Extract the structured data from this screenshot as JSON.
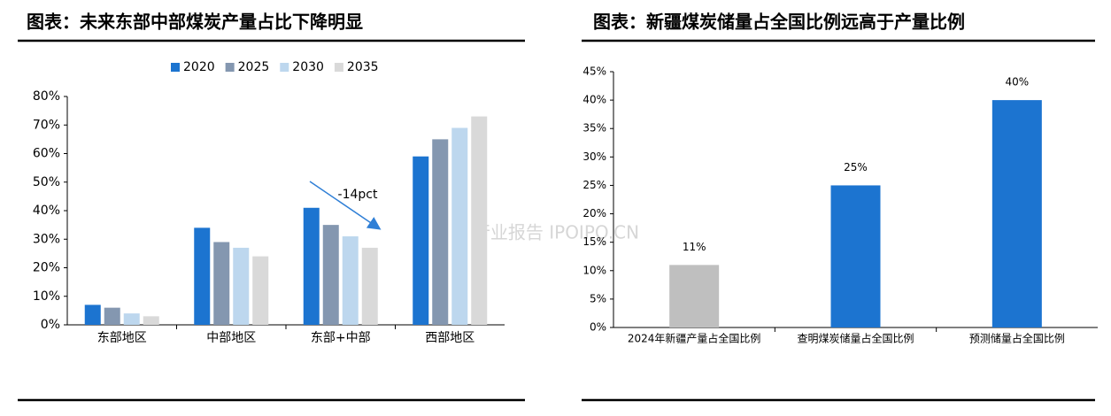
{
  "chart_data": [
    {
      "type": "bar",
      "title": "图表：未来东部中部煤炭产量占比下降明显",
      "categories": [
        "东部地区",
        "中部地区",
        "东部+中部",
        "西部地区"
      ],
      "series": [
        {
          "name": "2020",
          "color": "#1c74d0",
          "values": [
            7,
            34,
            41,
            59
          ]
        },
        {
          "name": "2025",
          "color": "#8497b0",
          "values": [
            6,
            29,
            35,
            65
          ]
        },
        {
          "name": "2030",
          "color": "#bdd7ee",
          "values": [
            4,
            27,
            31,
            69
          ]
        },
        {
          "name": "2035",
          "color": "#d9d9d9",
          "values": [
            3,
            24,
            27,
            73
          ]
        }
      ],
      "annotation": "-14pct",
      "ylim": [
        0,
        80
      ],
      "yticks": [
        {
          "value": 0,
          "label": "0%"
        },
        {
          "value": 10,
          "label": "10%"
        },
        {
          "value": 20,
          "label": "20%"
        },
        {
          "value": 30,
          "label": "30%"
        },
        {
          "value": 40,
          "label": "40%"
        },
        {
          "value": 50,
          "label": "50%"
        },
        {
          "value": 60,
          "label": "60%"
        },
        {
          "value": 70,
          "label": "70%"
        },
        {
          "value": 80,
          "label": "80%"
        }
      ],
      "legend": "top"
    },
    {
      "type": "bar",
      "title": "图表：新疆煤炭储量占全国比例远高于产量比例",
      "categories": [
        "2024年新疆产量占全国比例",
        "查明煤炭储量占全国比例",
        "预测储量占全国比例"
      ],
      "values": [
        11,
        25,
        40
      ],
      "value_labels": [
        "11%",
        "25%",
        "40%"
      ],
      "colors": [
        "#bfbfbf",
        "#1c74d0",
        "#1c74d0"
      ],
      "ylim": [
        0,
        45
      ],
      "yticks": [
        {
          "value": 0,
          "label": "0%"
        },
        {
          "value": 5,
          "label": "5%"
        },
        {
          "value": 10,
          "label": "10%"
        },
        {
          "value": 15,
          "label": "15%"
        },
        {
          "value": 20,
          "label": "20%"
        },
        {
          "value": 25,
          "label": "25%"
        },
        {
          "value": 30,
          "label": "30%"
        },
        {
          "value": 35,
          "label": "35%"
        },
        {
          "value": 40,
          "label": "40%"
        },
        {
          "value": 45,
          "label": "45%"
        }
      ]
    }
  ],
  "watermark": "行业报告 IPOIPO.CN"
}
